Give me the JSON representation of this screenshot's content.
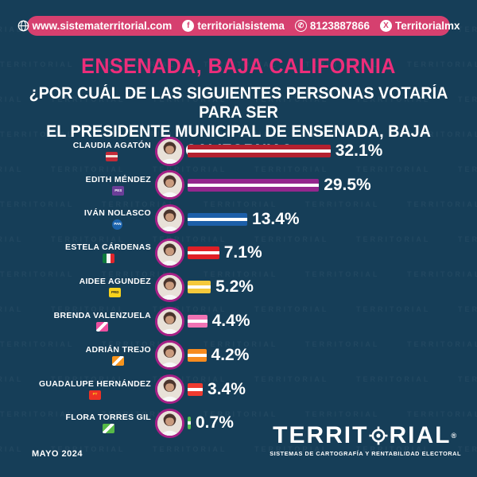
{
  "watermark": "TERRITORIAL",
  "topbar": {
    "website": "www.sistematerritorial.com",
    "facebook": "territorialsistema",
    "phone": "8123887866",
    "x_handle": "Territorialmx"
  },
  "header": {
    "title": "ENSENADA, BAJA CALIFORNIA",
    "question_line1": "¿POR CUÁL DE LAS SIGUIENTES PERSONAS VOTARÍA PARA SER",
    "question_line2": "EL PRESIDENTE MUNICIPAL DE ENSENADA, BAJA CALIFORNIA?"
  },
  "chart_data": {
    "type": "bar",
    "orientation": "horizontal",
    "title": "¿Por cuál de las siguientes personas votaría para ser el presidente municipal de Ensenada, Baja California?",
    "unit": "%",
    "xlim": [
      0,
      35
    ],
    "categories": [
      "CLAUDIA AGATÓN",
      "EDITH MÉNDEZ",
      "IVÁN NOLASCO",
      "ESTELA CÁRDENAS",
      "AIDEE AGUNDEZ",
      "BRENDA VALENZUELA",
      "ADRIÁN TREJO",
      "GUADALUPE HERNÁNDEZ",
      "FLORA TORRES GIL"
    ],
    "values": [
      32.1,
      29.5,
      13.4,
      7.1,
      5.2,
      4.4,
      4.2,
      3.4,
      0.7
    ],
    "labels": [
      "32.1%",
      "29.5%",
      "13.4%",
      "7.1%",
      "5.2%",
      "4.4%",
      "4.2%",
      "3.4%",
      "0.7%"
    ],
    "bar_colors": [
      "#b4202f",
      "#94278d",
      "#1c5fa9",
      "#e01f26",
      "#f5c93c",
      "#f073b4",
      "#f68b1f",
      "#ee3b30",
      "#5abf54"
    ],
    "bar_stripe_color": "#ffffff",
    "parties": [
      {
        "kind": "stripe",
        "bg": "#c22a38",
        "fg": "#f3e0d8",
        "label": ""
      },
      {
        "kind": "label",
        "bg": "#6b3e98",
        "fg": "#ffffff",
        "label": "PES"
      },
      {
        "kind": "label",
        "bg": "#1b63ad",
        "fg": "#ffffff",
        "label": "PAN",
        "shape": "circle"
      },
      {
        "kind": "tricolor",
        "bands": [
          "#0e7a3c",
          "#f5f5f5",
          "#e0252c"
        ],
        "label": ""
      },
      {
        "kind": "label",
        "bg": "#f8d21c",
        "fg": "#222222",
        "label": "PRD"
      },
      {
        "kind": "slash",
        "bg": "#ec4fa0",
        "fg": "#ffffff",
        "label": ""
      },
      {
        "kind": "slash",
        "bg": "#f7941d",
        "fg": "#ffffff",
        "label": ""
      },
      {
        "kind": "label",
        "bg": "#ee3124",
        "fg": "#f8d21c",
        "label": "PT"
      },
      {
        "kind": "slash",
        "bg": "#57b947",
        "fg": "#ffffff",
        "label": ""
      }
    ]
  },
  "footer": {
    "date": "MAYO 2024",
    "brand_left": "TERRIT",
    "brand_right": "RIAL",
    "registered": "®",
    "tagline": "SISTEMAS DE CARTOGRAFÍA Y RENTABILIDAD ELECTORAL"
  },
  "colors": {
    "background": "#163e58",
    "banner": "#d6406f",
    "title_pink": "#ec2d7a",
    "photo_ring": "#a72087"
  }
}
